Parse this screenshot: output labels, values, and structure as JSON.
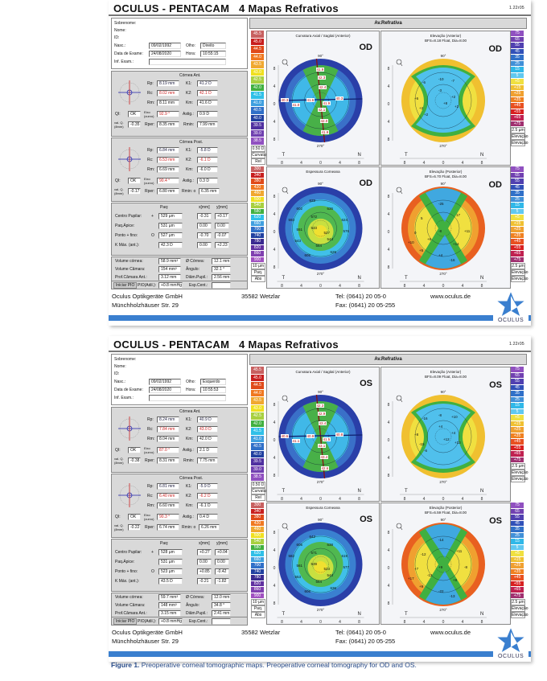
{
  "reports": [
    {
      "title": "OCULUS  -  PENTACAM",
      "subtitle": "4 Mapas Refrativos",
      "version": "1.22r05",
      "patient": {
        "sobrenome_label": "Sobrenome:",
        "nome_label": "Nome:",
        "id_label": "ID:",
        "nasc_label": "Nasc.:",
        "nasc": "09/02/1992",
        "olho_label": "Olho:",
        "olho": "Direito",
        "data_label": "Data de Exame:",
        "data": "24/08/2020",
        "hora_label": "Hora:",
        "hora": "10:55:15",
        "inf_label": "Inf. Exam.:"
      },
      "ant": {
        "title": "Córnea Ant.",
        "rp": "8.19 mm",
        "rc": "8.02 mm",
        "rm": "8.11 mm",
        "k1": "41.2 D",
        "k2": "42.1 D",
        "km": "41.6 D",
        "qi": "OK",
        "eixo": "92.9 °",
        "astig": "0.9 D",
        "valq": "-0.35",
        "rper": "8.35 mm",
        "rmin": "7.99 mm"
      },
      "post": {
        "title": "Córnea Post.",
        "rp": "6.84 mm",
        "rc": "6.53 mm",
        "rm": "6.69 mm",
        "k1": "-5.8 D",
        "k2": "-6.1 D",
        "km": "-6.0 D",
        "qi": "OK",
        "eixo": "90.4 °",
        "astig": "0.3 D",
        "valq": "-0.17",
        "rper": "6.80 mm",
        "rmin": "6.35 mm"
      },
      "paq": {
        "col_paq": "Paq:",
        "col_x": "x[mm]",
        "col_y": "y[mm]",
        "rows": [
          {
            "label": "Centro Pupilar:",
            "sym": "+",
            "paq": "529 µm",
            "x": "-0.31",
            "y": "+0.17"
          },
          {
            "label": "Paq.Ápice:",
            "sym": "",
            "paq": "531 µm",
            "x": "0.00",
            "y": "0.00"
          },
          {
            "label": "Ponto + fino:",
            "sym": "O",
            "paq": "527 µm",
            "x": "-0.70",
            "y": "-0.07"
          },
          {
            "label": "K Máx. (ant.):",
            "sym": "",
            "paq": "42.3 D",
            "x": "0.00",
            "y": "+2.23"
          }
        ]
      },
      "vol": {
        "vol_cornea_label": "Volume córnea:",
        "vol_cornea": "58.9 mm³",
        "diam_cornea_label": "Ø Córnea:",
        "diam_cornea": "12.1 mm",
        "vol_camara_label": "Volume Câmara:",
        "vol_camara": "154 mm³",
        "angulo_label": "Ângulo:",
        "angulo": "32.1 °",
        "prof_label": "Prof.Câmara Ant.:",
        "prof": "3.12 mm",
        "pupil_label": "Diâm.Pupil.:",
        "pupil": "2.56 mm",
        "pio_button": "Iniciar PIO",
        "pio_label": "PIO(Adil.):",
        "pio": "+0.8 mmHg",
        "esp_label": "Esp.Cent.:"
      },
      "maps": {
        "header": "Av.Refrativa",
        "eye": "OD",
        "curv_title": "Curvatura Axial / Sagital (Anterior)",
        "elev_ant_title": "Elevação (Anterior)",
        "elev_ant_bfs": "BFS=8.18 Float, Dia=8.00",
        "pachy_title": "Espessura Corneana",
        "elev_post_title": "Elevação (Posterior)",
        "elev_post_bfs": "BFS=6.70 Float, Dia=8.00",
        "curv_values": [
          "41.9",
          "42.3",
          "42.4",
          "41.6",
          "41.0",
          "40.3",
          "40.3",
          "41.9",
          "42.1",
          "42.0",
          "41.9"
        ],
        "elev_ant_values": [
          "-6",
          "-10",
          "-7",
          "-3",
          "+2",
          "+2",
          "+6",
          "+2",
          "+2",
          "+8"
        ],
        "pachy_values": [
          "629",
          "602",
          "636",
          "593",
          "572",
          "624",
          "551",
          "533",
          "527",
          "544",
          "576",
          "543",
          "564",
          "605",
          "625"
        ],
        "elev_post_values": [
          "-25",
          "5",
          "17",
          "0",
          "-8",
          "+11",
          "+10",
          "+6",
          "+14",
          "+5",
          "+4",
          "-16"
        ]
      },
      "footer": {
        "company": "Oculus Optikgeräte GmbH",
        "street": "Münchholzhäuser Str. 29",
        "city": "35582 Wetzlar",
        "tel": "Tel: (0641) 20 05-0",
        "fax": "Fax: (0641) 20 05-255",
        "web": "www.oculus.de",
        "logo": "OCULUS"
      }
    },
    {
      "title": "OCULUS  -  PENTACAM",
      "subtitle": "4 Mapas Refrativos",
      "version": "1.22r05",
      "patient": {
        "sobrenome_label": "Sobrenome:",
        "nome_label": "Nome:",
        "id_label": "ID:",
        "nasc_label": "Nasc.:",
        "nasc": "09/02/1992",
        "olho_label": "Olho:",
        "olho": "Esquerdo",
        "data_label": "Data de Exame:",
        "data": "24/08/2020",
        "hora_label": "Hora:",
        "hora": "10:55:53",
        "inf_label": "Inf. Exam.:"
      },
      "ant": {
        "title": "Córnea Ant.",
        "rp": "8.24 mm",
        "rc": "7.84 mm",
        "rm": "8.04 mm",
        "k1": "40.9 D",
        "k2": "43.0 D",
        "km": "42.0 D",
        "qi": "OK",
        "eixo": "87.0 °",
        "astig": "2.1 D",
        "valq": "-0.38",
        "rper": "8.31 mm",
        "rmin": "7.75 mm"
      },
      "post": {
        "title": "Córnea Post.",
        "rp": "6.81 mm",
        "rc": "6.40 mm",
        "rm": "6.60 mm",
        "k1": "-5.9 D",
        "k2": "-6.2 D",
        "km": "-6.1 D",
        "qi": "OK",
        "eixo": "90.3 °",
        "astig": "0.4 D",
        "valq": "-0.22",
        "rper": "6.74 mm",
        "rmin": "6.26 mm"
      },
      "paq": {
        "col_paq": "Paq:",
        "col_x": "x[mm]",
        "col_y": "y[mm]",
        "rows": [
          {
            "label": "Centro Pupilar:",
            "sym": "+",
            "paq": "528 µm",
            "x": "+0.27",
            "y": "+0.04"
          },
          {
            "label": "Paq.Ápice:",
            "sym": "",
            "paq": "531 µm",
            "x": "0.00",
            "y": "0.00"
          },
          {
            "label": "Ponto + fino:",
            "sym": "O",
            "paq": "523 µm",
            "x": "+0.85",
            "y": "-0.42"
          },
          {
            "label": "K Máx. (ant.):",
            "sym": "",
            "paq": "43.5 D",
            "x": "-0.21",
            "y": "-1.82"
          }
        ]
      },
      "vol": {
        "vol_cornea_label": "Volume córnea:",
        "vol_cornea": "59.7 mm³",
        "diam_cornea_label": "Ø Córnea:",
        "diam_cornea": "12.0 mm",
        "vol_camara_label": "Volume Câmara:",
        "vol_camara": "148 mm³",
        "angulo_label": "Ângulo:",
        "angulo": "34.8 °",
        "prof_label": "Prof.Câmara Ant.:",
        "prof": "3.15 mm",
        "pupil_label": "Diâm.Pupil.:",
        "pupil": "2.41 mm",
        "pio_button": "Iniciar PIO",
        "pio_label": "PIO(Adil.):",
        "pio": "+0.8 mmHg",
        "esp_label": "Esp.Cent.:"
      },
      "maps": {
        "header": "Av.Refrativa",
        "eye": "OS",
        "curv_title": "Curvatura Axial / Sagital (Anterior)",
        "elev_ant_title": "Elevação (Anterior)",
        "elev_ant_bfs": "BFS=8.09 Float, Dia=8.00",
        "pachy_title": "Espessura Corneana",
        "elev_post_title": "Elevação (Posterior)",
        "elev_post_bfs": "BFS=6.59 Float, Dia=8.00",
        "curv_values": [
          "42.3",
          "42.9",
          "43.4",
          "40.9",
          "41.1",
          "40.6",
          "40.8",
          "41.5",
          "43.1",
          "43.4",
          "42.6"
        ],
        "elev_ant_values": [
          "-16",
          "-8",
          "+10",
          "+4",
          "+4",
          "+13",
          "+8",
          "-15",
          "-6",
          "+12"
        ],
        "pachy_values": [
          "642",
          "605",
          "638",
          "582",
          "571",
          "619",
          "561",
          "539",
          "523",
          "544",
          "577",
          "553",
          "564",
          "606",
          "636"
        ],
        "elev_post_values": [
          "-14",
          "-12",
          "+11",
          "+7",
          "+9",
          "-8",
          "+17",
          "-12",
          "+8",
          "+9",
          "-22",
          "-13"
        ]
      },
      "footer": {
        "company": "Oculus Optikgeräte GmbH",
        "street": "Münchholzhäuser Str. 29",
        "city": "35582 Wetzlar",
        "tel": "Tel: (0641) 20 05-0",
        "fax": "Fax: (0641) 20 05-255",
        "web": "www.oculus.de",
        "logo": "OCULUS"
      }
    }
  ],
  "scales": {
    "curvature": [
      "45.5",
      "45.0",
      "44.5",
      "44.0",
      "43.5",
      "43.0",
      "42.5",
      "42.0",
      "41.5",
      "41.0",
      "40.5",
      "40.0",
      "39.5",
      "39.0",
      "38.5"
    ],
    "curvature_footer": [
      "0.50 D",
      "Curvatura",
      "Rel"
    ],
    "pachy": [
      "300",
      "340",
      "380",
      "420",
      "460",
      "500",
      "540",
      "580",
      "620",
      "660",
      "700",
      "740",
      "780",
      "820",
      "860",
      "900"
    ],
    "pachy_footer": [
      "10 µm",
      "Paq.",
      "Abs"
    ],
    "elevation": [
      "75",
      "65",
      "55",
      "45",
      "35",
      "25",
      "15",
      "5",
      "+5",
      "+15",
      "+25",
      "+35",
      "+45",
      "+55",
      "+65",
      "+75"
    ],
    "elevation_footer": [
      "2.5 µm",
      "Elevação",
      "Elevação"
    ],
    "curv_colors": [
      "#c86060",
      "#c81e1e",
      "#e04a1a",
      "#f07820",
      "#f0a830",
      "#f0e020",
      "#a8d040",
      "#40b040",
      "#30c0e8",
      "#40a0e0",
      "#3070c8",
      "#2040a0",
      "#5030a0",
      "#7040b0",
      "#9050c0"
    ],
    "pachy_colors": [
      "#c86060",
      "#c81e1e",
      "#e04a1a",
      "#f07820",
      "#f0a830",
      "#f0e020",
      "#a8d040",
      "#40b040",
      "#30c0e8",
      "#40a0e0",
      "#3070c8",
      "#2040a0",
      "#3a2a90",
      "#6030a0",
      "#8040b0",
      "#a050c0"
    ],
    "elev_colors": [
      "#9050c0",
      "#7040b0",
      "#5040b0",
      "#3050b8",
      "#3070c8",
      "#4090d8",
      "#30b8e8",
      "#60c8f0",
      "#f0e040",
      "#f0c030",
      "#f0a030",
      "#f08020",
      "#e85020",
      "#d82020",
      "#c02050",
      "#a03070"
    ]
  },
  "caption": {
    "label": "Figure 1.",
    "text": " Preoperative corneal tomographic maps. Preoperative corneal tomography for OD and OS."
  }
}
